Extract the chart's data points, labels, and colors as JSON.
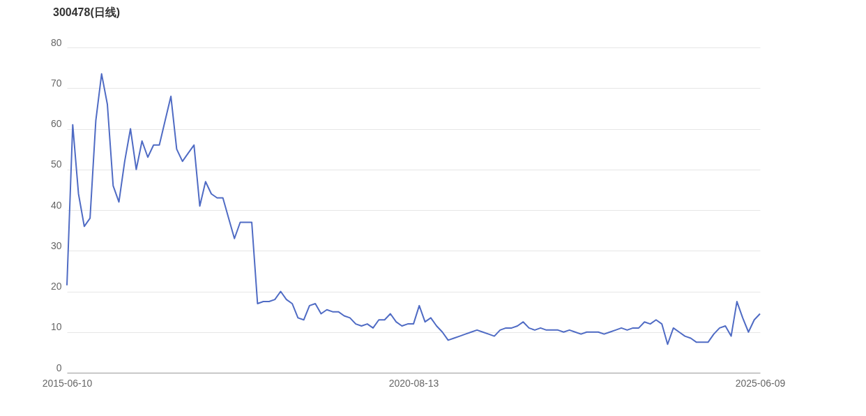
{
  "chart_data": {
    "type": "line",
    "title": "300478(日线)",
    "categories": [
      "2015-06-10",
      null,
      null,
      null,
      null,
      null,
      null,
      null,
      null,
      null,
      null,
      null,
      null,
      null,
      null,
      null,
      null,
      null,
      null,
      null,
      null,
      null,
      null,
      null,
      null,
      null,
      null,
      null,
      null,
      null,
      null,
      null,
      null,
      null,
      null,
      null,
      null,
      null,
      null,
      null,
      null,
      null,
      null,
      null,
      null,
      null,
      null,
      null,
      null,
      null,
      null,
      null,
      null,
      null,
      null,
      null,
      null,
      null,
      null,
      null,
      "2020-08-13",
      null,
      null,
      null,
      null,
      null,
      null,
      null,
      null,
      null,
      null,
      null,
      null,
      null,
      null,
      null,
      null,
      null,
      null,
      null,
      null,
      null,
      null,
      null,
      null,
      null,
      null,
      null,
      null,
      null,
      null,
      null,
      null,
      null,
      null,
      null,
      null,
      null,
      null,
      null,
      null,
      null,
      null,
      null,
      null,
      null,
      null,
      null,
      null,
      null,
      null,
      null,
      null,
      null,
      null,
      null,
      null,
      null,
      null,
      null,
      "2025-06-09"
    ],
    "series": [
      {
        "color": "#4f6bc4",
        "values": [
          21.5,
          61,
          44,
          36,
          38,
          62,
          73.5,
          66,
          46,
          42,
          52,
          60,
          50,
          57,
          53,
          56,
          56,
          62,
          68,
          55,
          52,
          54,
          56,
          41,
          47,
          44,
          43,
          43,
          38,
          33,
          37,
          37,
          37,
          17,
          17.5,
          17.5,
          18,
          20,
          18,
          17,
          13.5,
          13,
          16.5,
          17,
          14.5,
          15.5,
          15,
          15,
          14,
          13.5,
          12,
          11.5,
          12,
          11,
          13,
          13,
          14.5,
          12.5,
          11.5,
          12,
          12,
          16.5,
          12.5,
          13.5,
          11.5,
          10,
          8,
          8.5,
          9,
          9.5,
          10,
          10.5,
          10,
          9.5,
          9,
          10.5,
          11,
          11,
          11.5,
          12.5,
          11,
          10.5,
          11,
          10.5,
          10.5,
          10.5,
          10,
          10.5,
          10,
          9.5,
          10,
          10,
          10,
          9.5,
          10,
          10.5,
          11,
          10.5,
          11,
          11,
          12.5,
          12,
          13,
          12,
          7,
          11,
          10,
          9,
          8.5,
          7.5,
          7.5,
          7.5,
          9.5,
          11,
          11.5,
          9,
          17.5,
          13.5,
          10,
          13,
          14.5
        ]
      }
    ],
    "ylim": [
      0,
      80
    ],
    "yticks": [
      0,
      10,
      20,
      30,
      40,
      50,
      60,
      70,
      80
    ],
    "grid": "y",
    "marker": "none",
    "line_style": "solid"
  }
}
